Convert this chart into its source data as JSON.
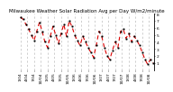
{
  "title": "Milwaukee Weather Solar Radiation Avg per Day W/m2/minute",
  "y_values": [
    7.5,
    7.2,
    6.5,
    5.8,
    5.0,
    4.2,
    5.5,
    6.8,
    5.5,
    4.0,
    3.2,
    4.8,
    6.2,
    5.0,
    3.8,
    5.2,
    6.5,
    4.8,
    7.0,
    6.2,
    5.0,
    4.2,
    3.5,
    4.8,
    4.0,
    3.2,
    2.5,
    1.8,
    3.5,
    5.5,
    4.8,
    3.2,
    2.0,
    1.5,
    2.8,
    4.0,
    3.2,
    5.5,
    5.8,
    4.5,
    5.2,
    4.0,
    4.8,
    4.2,
    3.5,
    2.5,
    1.5,
    0.8,
    1.5,
    1.0
  ],
  "x_labels": [
    "1/04",
    "4/04",
    "7/04",
    "10/04",
    "1/05",
    "4/05",
    "7/05",
    "10/05",
    "1/06",
    "4/06",
    "7/06",
    "10/06",
    "1/07",
    "4/07",
    "7/07",
    "10/07",
    "1/08",
    "4/08",
    "7/08",
    "10/08"
  ],
  "num_points": 50,
  "line_color": "#dd0000",
  "marker_color": "#000000",
  "background_color": "#ffffff",
  "grid_color": "#aaaaaa",
  "ylim": [
    0,
    8
  ],
  "yticks": [
    1,
    2,
    3,
    4,
    5,
    6,
    7,
    8
  ],
  "ytick_labels": [
    "1",
    "2",
    "3",
    "4",
    "5",
    "6",
    "7",
    "8"
  ],
  "title_fontsize": 4.0,
  "tick_fontsize": 3.2
}
